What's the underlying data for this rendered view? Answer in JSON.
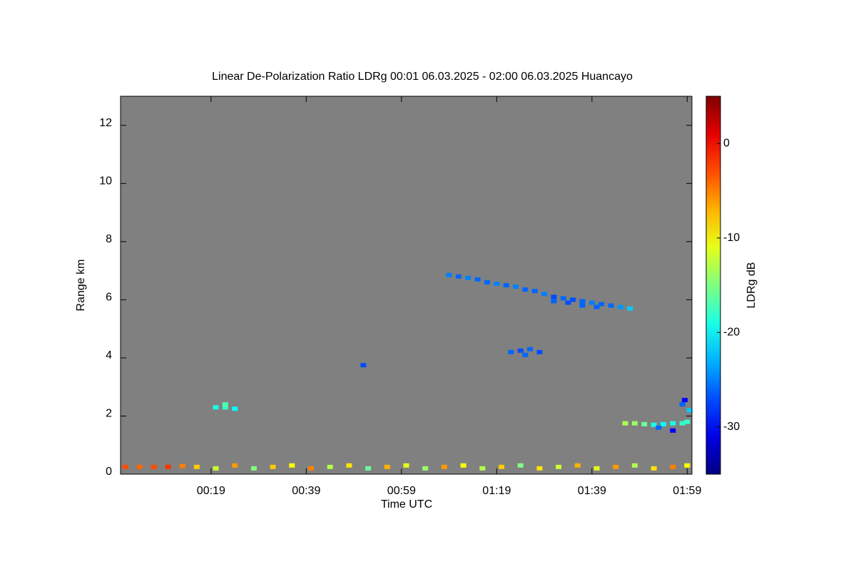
{
  "chart_data": {
    "type": "heatmap",
    "title": "Linear De-Polarization Ratio LDRg   00:01 06.03.2025 - 02:00 06.03.2025 Huancayo",
    "x_label": "Time UTC",
    "y_label": "Range km",
    "colorbar_label": "LDRg dB",
    "background_color": "#808080",
    "colormap": "jet",
    "xlim": [
      0,
      120
    ],
    "xticks": [
      {
        "value": 19,
        "label": "00:19"
      },
      {
        "value": 39,
        "label": "00:39"
      },
      {
        "value": 59,
        "label": "00:59"
      },
      {
        "value": 79,
        "label": "01:19"
      },
      {
        "value": 99,
        "label": "01:39"
      },
      {
        "value": 119,
        "label": "01:59"
      }
    ],
    "ylim": [
      0,
      13
    ],
    "yticks": [
      0,
      2,
      4,
      6,
      8,
      10,
      12
    ],
    "clim": [
      -35,
      5
    ],
    "cticks": [
      0,
      -10,
      -20,
      -30
    ],
    "x": [
      69,
      71,
      73,
      75,
      77,
      79,
      81,
      83,
      85,
      87,
      89,
      91,
      93,
      95,
      97,
      99,
      101,
      103,
      105,
      107,
      91,
      94,
      97,
      100,
      82,
      84,
      86,
      88,
      85,
      20,
      22,
      24,
      22,
      51,
      106,
      108,
      110,
      112,
      114,
      116,
      118,
      119,
      113,
      116,
      118,
      119.5,
      118.5,
      1,
      4,
      7,
      10,
      13,
      16,
      20,
      24,
      28,
      32,
      36,
      40,
      44,
      48,
      52,
      56,
      60,
      64,
      68,
      72,
      76,
      80,
      84,
      88,
      92,
      96,
      100,
      104,
      108,
      112,
      116,
      119
    ],
    "y": [
      6.85,
      6.8,
      6.75,
      6.7,
      6.6,
      6.55,
      6.5,
      6.45,
      6.35,
      6.3,
      6.2,
      6.1,
      6.05,
      6.0,
      5.95,
      5.9,
      5.85,
      5.8,
      5.75,
      5.7,
      5.95,
      5.9,
      5.8,
      5.75,
      4.2,
      4.25,
      4.3,
      4.2,
      4.1,
      2.3,
      2.3,
      2.25,
      2.4,
      3.75,
      1.75,
      1.75,
      1.72,
      1.7,
      1.72,
      1.75,
      1.75,
      1.8,
      1.6,
      1.5,
      2.4,
      2.2,
      2.55,
      0.25,
      0.25,
      0.25,
      0.25,
      0.28,
      0.25,
      0.2,
      0.3,
      0.2,
      0.25,
      0.3,
      0.2,
      0.25,
      0.3,
      0.2,
      0.25,
      0.3,
      0.2,
      0.25,
      0.3,
      0.2,
      0.25,
      0.3,
      0.2,
      0.25,
      0.3,
      0.2,
      0.25,
      0.3,
      0.2,
      0.25,
      0.3
    ],
    "values": [
      -25,
      -26,
      -25,
      -26,
      -26,
      -25,
      -26,
      -25,
      -26,
      -26,
      -25,
      -27,
      -26,
      -27,
      -26,
      -25,
      -26,
      -26,
      -24,
      -22,
      -26,
      -27,
      -26,
      -26,
      -26,
      -27,
      -26,
      -27,
      -26,
      -19,
      -18,
      -20,
      -17,
      -27,
      -13,
      -14,
      -16,
      -19,
      -20,
      -19,
      -18,
      -18,
      -26,
      -30,
      -26,
      -22,
      -30,
      -3,
      -4,
      -3,
      -2,
      -5,
      -8,
      -12,
      -6,
      -15,
      -8,
      -10,
      -5,
      -13,
      -9,
      -16,
      -7,
      -11,
      -14,
      -6,
      -10,
      -13,
      -8,
      -15,
      -9,
      -12,
      -7,
      -11,
      -6,
      -13,
      -9,
      -5,
      -10
    ]
  }
}
